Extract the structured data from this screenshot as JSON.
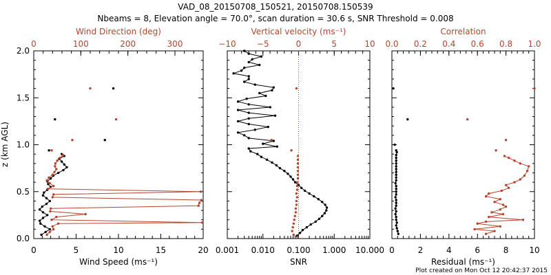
{
  "title_line1": "VAD_08_20150708_150521, 20150708.150539",
  "title_line2": "Nbeams = 8, Elevation angle = 70.0°, scan duration = 30.6 s, SNR Threshold = 0.008",
  "footer": "Plot created on Mon Oct 12 20:42:37 2015",
  "colors": {
    "primary": "#000000",
    "secondary": "#b5442d"
  },
  "ylabel": "z (km AGL)",
  "yticks": [
    "0.0",
    "0.5",
    "1.0",
    "1.5",
    "2.0"
  ],
  "chart_data": [
    {
      "type": "line",
      "ylabel": "z (km AGL)",
      "ylim": [
        0,
        2
      ],
      "xlabel": "Wind Speed (ms⁻¹)",
      "xlim": [
        0,
        20
      ],
      "xticks": [
        "0",
        "5",
        "10",
        "15",
        "20"
      ],
      "top_label": "Wind Direction (deg)",
      "top_lim": [
        0,
        360
      ],
      "top_ticks": [
        "0",
        "100",
        "200",
        "300"
      ],
      "series": [
        {
          "axis": "bottom",
          "color": "#000000",
          "connected": true,
          "points": [
            [
              0.9,
              0.04
            ],
            [
              1.4,
              0.07
            ],
            [
              1.9,
              0.1
            ],
            [
              1.3,
              0.13
            ],
            [
              0.8,
              0.16
            ],
            [
              0.7,
              0.19
            ],
            [
              1.1,
              0.22
            ],
            [
              1.6,
              0.25
            ],
            [
              1.1,
              0.28
            ],
            [
              0.7,
              0.31
            ],
            [
              1.0,
              0.34
            ],
            [
              1.5,
              0.37
            ],
            [
              1.9,
              0.4
            ],
            [
              1.5,
              0.43
            ],
            [
              1.1,
              0.46
            ],
            [
              1.2,
              0.49
            ],
            [
              1.6,
              0.52
            ],
            [
              2.0,
              0.55
            ],
            [
              1.7,
              0.58
            ],
            [
              1.6,
              0.61
            ],
            [
              2.0,
              0.64
            ],
            [
              2.3,
              0.67
            ],
            [
              2.9,
              0.7
            ],
            [
              3.5,
              0.73
            ],
            [
              3.9,
              0.76
            ],
            [
              3.6,
              0.79
            ],
            [
              3.3,
              0.82
            ],
            [
              3.0,
              0.85
            ],
            [
              3.6,
              0.88
            ],
            [
              3.3,
              0.9
            ]
          ]
        },
        {
          "axis": "bottom",
          "color": "#000000",
          "connected": false,
          "points": [
            [
              1.8,
              0.94
            ],
            [
              8.4,
              1.05
            ],
            [
              2.5,
              1.27
            ],
            [
              9.4,
              1.6
            ]
          ]
        },
        {
          "axis": "top",
          "color": "#b5442d",
          "connected": true,
          "points": [
            [
              28,
              0.04
            ],
            [
              34,
              0.07
            ],
            [
              42,
              0.1
            ],
            [
              40,
              0.13
            ],
            [
              52,
              0.16
            ],
            [
              358,
              0.17
            ],
            [
              38,
              0.2
            ],
            [
              48,
              0.23
            ],
            [
              110,
              0.26
            ],
            [
              35,
              0.29
            ],
            [
              36,
              0.32
            ],
            [
              350,
              0.35
            ],
            [
              352,
              0.38
            ],
            [
              356,
              0.41
            ],
            [
              40,
              0.44
            ],
            [
              42,
              0.47
            ],
            [
              355,
              0.5
            ],
            [
              30,
              0.53
            ],
            [
              42,
              0.56
            ],
            [
              34,
              0.59
            ],
            [
              28,
              0.62
            ],
            [
              32,
              0.65
            ],
            [
              40,
              0.68
            ],
            [
              44,
              0.71
            ],
            [
              48,
              0.74
            ],
            [
              45,
              0.77
            ],
            [
              46,
              0.8
            ],
            [
              50,
              0.83
            ],
            [
              56,
              0.86
            ],
            [
              62,
              0.89
            ]
          ]
        },
        {
          "axis": "top",
          "color": "#b5442d",
          "connected": false,
          "points": [
            [
              38,
              0.94
            ],
            [
              82,
              1.05
            ],
            [
              175,
              1.27
            ],
            [
              120,
              1.6
            ]
          ]
        }
      ]
    },
    {
      "type": "line",
      "ylim": [
        0,
        2
      ],
      "xlabel": "SNR",
      "xscale": "log",
      "xlim": [
        0.001,
        10
      ],
      "xticks": [
        "0.001",
        "0.010",
        "0.100",
        "1.000",
        "10.000"
      ],
      "top_label": "Vertical velocity (ms⁻¹)",
      "top_lim": [
        -10,
        10
      ],
      "top_ticks": [
        "−10",
        "−5",
        "0",
        "5",
        "10"
      ],
      "reference_line": 0,
      "series": [
        {
          "axis": "bottom",
          "color": "#000000",
          "connected": true,
          "points": [
            [
              0.09,
              0.03
            ],
            [
              0.11,
              0.06
            ],
            [
              0.13,
              0.09
            ],
            [
              0.17,
              0.12
            ],
            [
              0.22,
              0.15
            ],
            [
              0.3,
              0.18
            ],
            [
              0.38,
              0.21
            ],
            [
              0.46,
              0.24
            ],
            [
              0.54,
              0.27
            ],
            [
              0.6,
              0.3
            ],
            [
              0.62,
              0.33
            ],
            [
              0.56,
              0.36
            ],
            [
              0.46,
              0.39
            ],
            [
              0.36,
              0.42
            ],
            [
              0.27,
              0.45
            ],
            [
              0.2,
              0.48
            ],
            [
              0.15,
              0.51
            ],
            [
              0.12,
              0.54
            ],
            [
              0.1,
              0.57
            ],
            [
              0.08,
              0.6
            ],
            [
              0.07,
              0.63
            ],
            [
              0.06,
              0.66
            ],
            [
              0.05,
              0.69
            ],
            [
              0.04,
              0.72
            ],
            [
              0.03,
              0.75
            ],
            [
              0.024,
              0.78
            ],
            [
              0.018,
              0.81
            ],
            [
              0.013,
              0.84
            ],
            [
              0.009,
              0.87
            ],
            [
              0.007,
              0.9
            ],
            [
              0.0045,
              0.93
            ],
            [
              0.004,
              0.96
            ],
            [
              0.025,
              0.98
            ],
            [
              0.01,
              1.01
            ],
            [
              0.02,
              1.04
            ],
            [
              0.004,
              1.07
            ],
            [
              0.003,
              1.1
            ],
            [
              0.002,
              1.13
            ],
            [
              0.006,
              1.16
            ],
            [
              0.014,
              1.19
            ],
            [
              0.004,
              1.22
            ],
            [
              0.002,
              1.25
            ],
            [
              0.004,
              1.28
            ],
            [
              0.022,
              1.31
            ],
            [
              0.004,
              1.34
            ],
            [
              0.002,
              1.37
            ],
            [
              0.016,
              1.4
            ],
            [
              0.004,
              1.43
            ],
            [
              0.002,
              1.46
            ],
            [
              0.0035,
              1.49
            ],
            [
              0.012,
              1.52
            ],
            [
              0.008,
              1.55
            ],
            [
              0.018,
              1.58
            ],
            [
              0.02,
              1.61
            ],
            [
              0.006,
              1.64
            ],
            [
              0.003,
              1.67
            ],
            [
              0.004,
              1.7
            ],
            [
              0.004,
              1.73
            ],
            [
              0.0015,
              1.76
            ],
            [
              0.0025,
              1.79
            ],
            [
              0.003,
              1.82
            ],
            [
              0.008,
              1.85
            ],
            [
              0.004,
              1.88
            ],
            [
              0.005,
              1.91
            ],
            [
              0.009,
              1.94
            ],
            [
              0.004,
              1.97
            ],
            [
              0.003,
              2.0
            ]
          ]
        },
        {
          "axis": "top",
          "color": "#b5442d",
          "connected": false,
          "points": [
            [
              -0.7,
              0.04
            ],
            [
              -0.9,
              0.08
            ],
            [
              -0.8,
              0.12
            ],
            [
              -0.7,
              0.16
            ],
            [
              -0.6,
              0.2
            ],
            [
              -0.5,
              0.24
            ],
            [
              -0.4,
              0.28
            ],
            [
              -0.4,
              0.32
            ],
            [
              -0.3,
              0.36
            ],
            [
              -0.3,
              0.4
            ],
            [
              -0.2,
              0.44
            ],
            [
              -0.3,
              0.48
            ],
            [
              -0.2,
              0.52
            ],
            [
              -0.2,
              0.56
            ],
            [
              -0.2,
              0.6
            ],
            [
              -0.1,
              0.64
            ],
            [
              -0.1,
              0.68
            ],
            [
              -0.1,
              0.72
            ],
            [
              -0.1,
              0.76
            ],
            [
              -0.1,
              0.8
            ],
            [
              -0.1,
              0.84
            ],
            [
              -0.1,
              0.88
            ],
            [
              -1.0,
              0.94
            ],
            [
              -3.8,
              1.05
            ],
            [
              -0.3,
              1.6
            ]
          ]
        }
      ]
    },
    {
      "type": "line",
      "ylim": [
        0,
        2
      ],
      "xlabel": "Residual (ms⁻¹)",
      "xlim": [
        0,
        10
      ],
      "xticks": [
        "0",
        "2",
        "4",
        "6",
        "8",
        "10"
      ],
      "top_label": "Correlation",
      "top_lim": [
        0,
        1
      ],
      "top_ticks": [
        "0.0",
        "0.2",
        "0.4",
        "0.6",
        "0.8",
        "1.0"
      ],
      "series": [
        {
          "axis": "bottom",
          "color": "#000000",
          "connected": true,
          "points": [
            [
              0.45,
              0.05
            ],
            [
              0.4,
              0.08
            ],
            [
              0.35,
              0.11
            ],
            [
              0.3,
              0.14
            ],
            [
              0.35,
              0.17
            ],
            [
              0.3,
              0.2
            ],
            [
              0.3,
              0.23
            ],
            [
              0.25,
              0.26
            ],
            [
              0.3,
              0.29
            ],
            [
              0.25,
              0.32
            ],
            [
              0.3,
              0.35
            ],
            [
              0.3,
              0.38
            ],
            [
              0.3,
              0.41
            ],
            [
              0.25,
              0.44
            ],
            [
              0.3,
              0.47
            ],
            [
              0.3,
              0.5
            ],
            [
              0.3,
              0.53
            ],
            [
              0.3,
              0.56
            ],
            [
              0.25,
              0.59
            ],
            [
              0.3,
              0.62
            ],
            [
              0.3,
              0.65
            ],
            [
              0.3,
              0.68
            ],
            [
              0.3,
              0.71
            ],
            [
              0.3,
              0.74
            ],
            [
              0.3,
              0.77
            ],
            [
              0.3,
              0.8
            ],
            [
              0.3,
              0.83
            ],
            [
              0.3,
              0.86
            ],
            [
              0.3,
              0.89
            ],
            [
              0.35,
              0.92
            ]
          ]
        },
        {
          "axis": "bottom",
          "color": "#000000",
          "connected": false,
          "points": [
            [
              0.3,
              0.94
            ],
            [
              0.2,
              1.0
            ],
            [
              1.1,
              1.27
            ],
            [
              0.1,
              1.6
            ]
          ]
        },
        {
          "axis": "top",
          "color": "#b5442d",
          "connected": true,
          "points": [
            [
              0.66,
              0.05
            ],
            [
              0.72,
              0.08
            ],
            [
              0.58,
              0.1
            ],
            [
              0.76,
              0.13
            ],
            [
              0.6,
              0.16
            ],
            [
              0.66,
              0.18
            ],
            [
              0.92,
              0.2
            ],
            [
              0.68,
              0.23
            ],
            [
              0.78,
              0.26
            ],
            [
              0.7,
              0.28
            ],
            [
              0.76,
              0.31
            ],
            [
              0.8,
              0.34
            ],
            [
              0.78,
              0.36
            ],
            [
              0.72,
              0.39
            ],
            [
              0.76,
              0.42
            ],
            [
              0.66,
              0.45
            ],
            [
              0.68,
              0.48
            ],
            [
              0.77,
              0.51
            ],
            [
              0.82,
              0.54
            ],
            [
              0.8,
              0.57
            ],
            [
              0.86,
              0.6
            ],
            [
              0.9,
              0.63
            ],
            [
              0.93,
              0.67
            ],
            [
              0.95,
              0.72
            ],
            [
              0.96,
              0.77
            ],
            [
              0.9,
              0.8
            ],
            [
              0.86,
              0.83
            ],
            [
              0.82,
              0.86
            ],
            [
              0.79,
              0.88
            ]
          ]
        },
        {
          "axis": "top",
          "color": "#b5442d",
          "connected": false,
          "points": [
            [
              0.73,
              0.94
            ],
            [
              0.8,
              1.05
            ],
            [
              0.53,
              1.27
            ],
            [
              1.0,
              1.6
            ]
          ]
        }
      ]
    }
  ]
}
